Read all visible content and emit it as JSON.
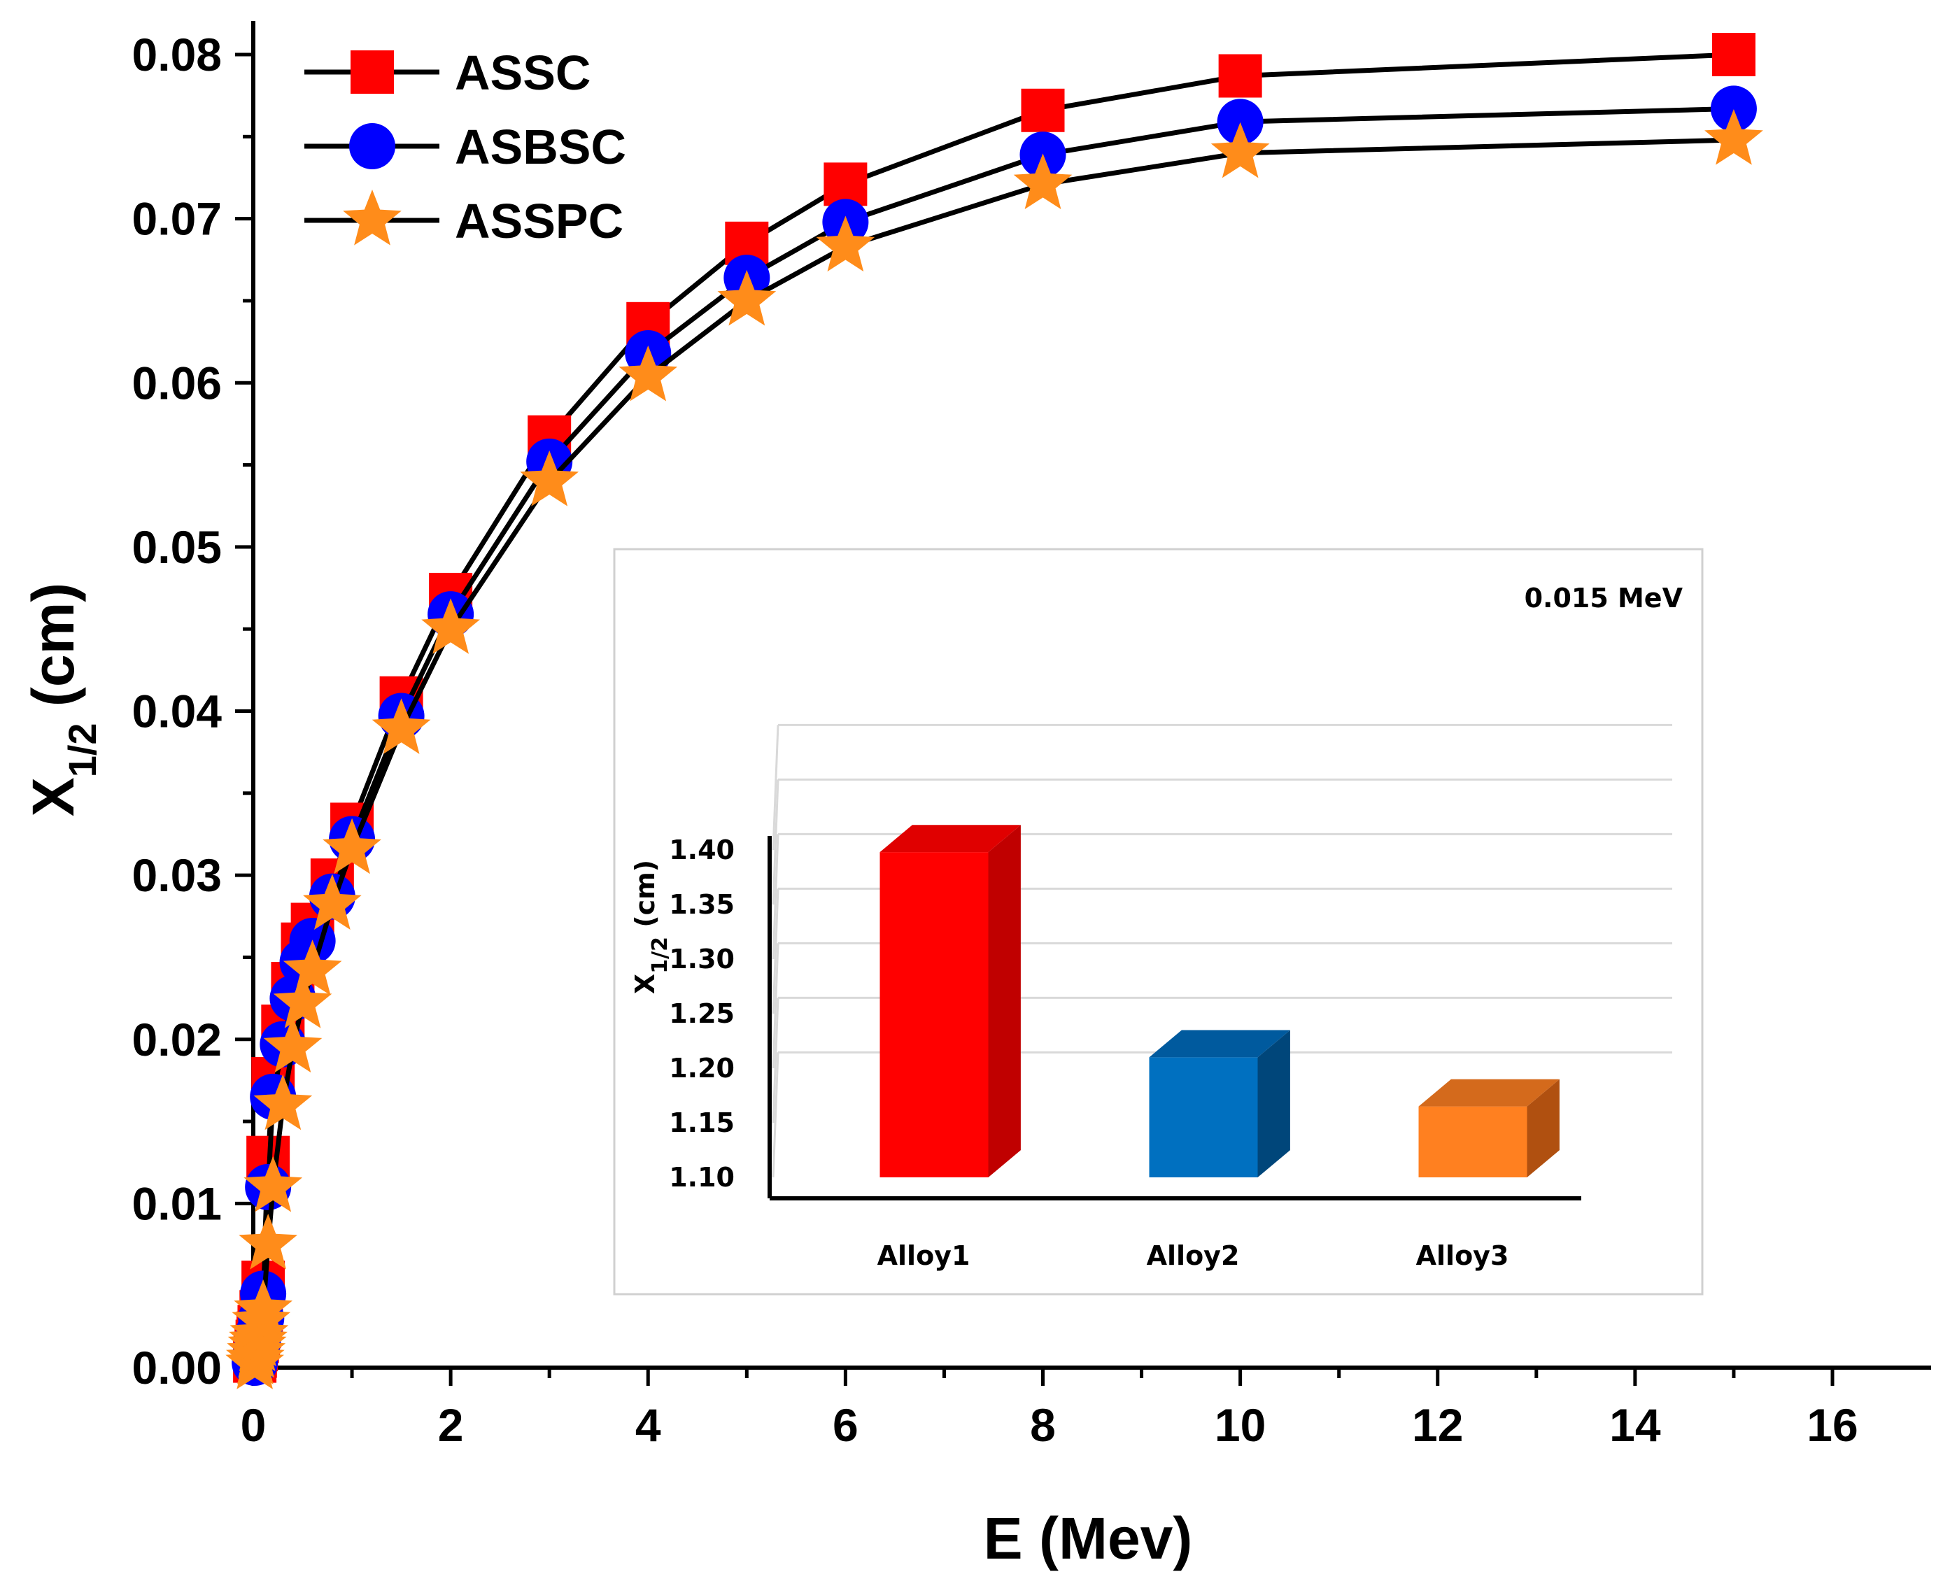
{
  "chart_data": [
    {
      "type": "line",
      "title": "",
      "xlabel": "E (Mev)",
      "ylabel": {
        "main": "X",
        "sub": "1/2",
        "unit": " (cm)"
      },
      "xlim": [
        0,
        17
      ],
      "ylim": [
        0,
        0.082
      ],
      "xticks": [
        0,
        2,
        4,
        6,
        8,
        10,
        12,
        14,
        16
      ],
      "yticks": [
        0.0,
        0.01,
        0.02,
        0.03,
        0.04,
        0.05,
        0.06,
        0.07,
        0.08
      ],
      "ytick_labels": [
        "0.00",
        "0.01",
        "0.02",
        "0.03",
        "0.04",
        "0.05",
        "0.06",
        "0.07",
        "0.08"
      ],
      "xtick_labels": [
        "0",
        "2",
        "4",
        "6",
        "8",
        "10",
        "12",
        "14",
        "16"
      ],
      "legend_position": "top-left",
      "x": [
        0.015,
        0.02,
        0.03,
        0.04,
        0.05,
        0.06,
        0.08,
        0.1,
        0.15,
        0.2,
        0.3,
        0.4,
        0.5,
        0.6,
        0.8,
        1.0,
        1.5,
        2,
        3,
        4,
        5,
        6,
        8,
        10,
        15
      ],
      "series": [
        {
          "name": "ASSC",
          "color": "#ff0000",
          "marker": "square",
          "values": [
            0.0004,
            0.0007,
            0.0011,
            0.0016,
            0.0021,
            0.0025,
            0.0034,
            0.0052,
            0.0128,
            0.0176,
            0.0208,
            0.0234,
            0.0258,
            0.027,
            0.0297,
            0.0331,
            0.0408,
            0.0471,
            0.0567,
            0.0636,
            0.0685,
            0.0721,
            0.0766,
            0.0787,
            0.08
          ]
        },
        {
          "name": "ASBSC",
          "color": "#0000ff",
          "marker": "circle",
          "values": [
            0.0003,
            0.0006,
            0.001,
            0.0014,
            0.0018,
            0.0022,
            0.003,
            0.0045,
            0.011,
            0.0165,
            0.0197,
            0.0225,
            0.0247,
            0.026,
            0.0287,
            0.0322,
            0.0397,
            0.0459,
            0.0552,
            0.0618,
            0.0664,
            0.0698,
            0.0739,
            0.0759,
            0.0767
          ]
        },
        {
          "name": "ASSPC",
          "color": "#ff8c1a",
          "marker": "star",
          "values": [
            0.0002,
            0.0005,
            0.0009,
            0.0013,
            0.0016,
            0.002,
            0.0028,
            0.0035,
            0.0075,
            0.011,
            0.016,
            0.0195,
            0.0222,
            0.0242,
            0.0282,
            0.0316,
            0.0389,
            0.045,
            0.054,
            0.0604,
            0.065,
            0.0683,
            0.0721,
            0.074,
            0.0748
          ]
        }
      ]
    },
    {
      "type": "bar",
      "title": "",
      "annotation": "0.015 MeV",
      "xlabel": "",
      "ylabel": {
        "main": "X",
        "sub": "1/2",
        "unit": " (cm)"
      },
      "categories": [
        "Alloy1",
        "Alloy2",
        "Alloy3"
      ],
      "values": [
        1.398,
        1.21,
        1.165
      ],
      "ylim": [
        1.1,
        1.4
      ],
      "yticks": [
        1.1,
        1.15,
        1.2,
        1.25,
        1.3,
        1.35,
        1.4
      ],
      "ytick_labels": [
        "1.10",
        "1.15",
        "1.20",
        "1.25",
        "1.30",
        "1.35",
        "1.40"
      ],
      "colors": [
        {
          "front": "#ff0000",
          "side": "#c00000",
          "top": "#e00000"
        },
        {
          "front": "#0070c0",
          "side": "#00467a",
          "top": "#005a9e"
        },
        {
          "front": "#ff8020",
          "side": "#b05010",
          "top": "#d46a1c"
        }
      ],
      "grid": true,
      "style": "3d"
    }
  ]
}
